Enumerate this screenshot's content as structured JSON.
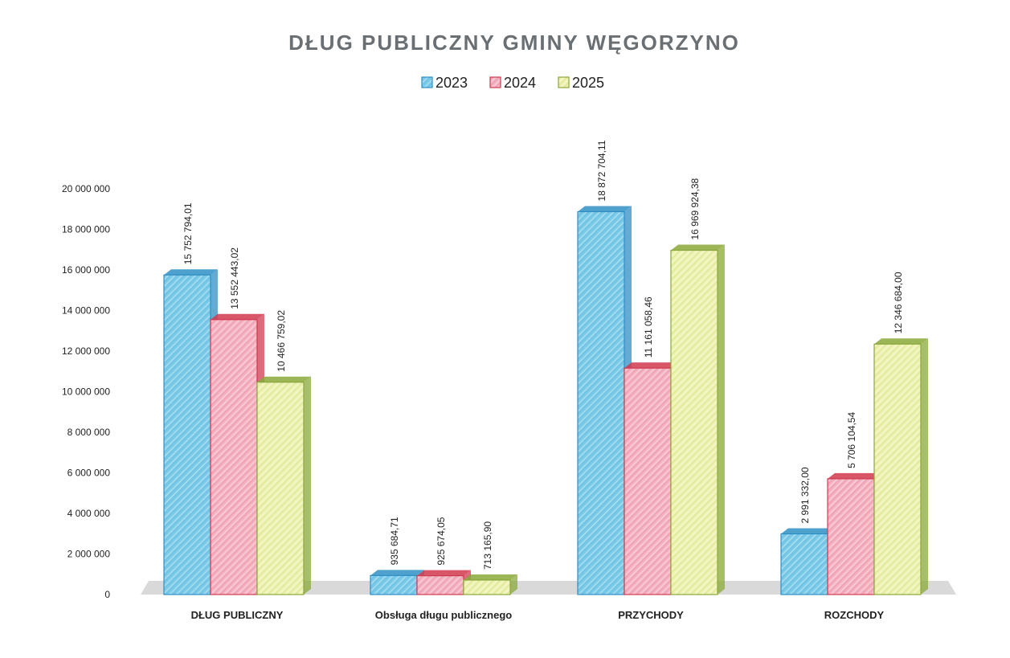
{
  "chart_data": {
    "type": "bar3d",
    "title": "DŁUG PUBLICZNY GMINY WĘGORZYNO",
    "categories": [
      "DŁUG PUBLICZNY",
      "Obsługa długu publicznego",
      "PRZYCHODY",
      "ROZCHODY"
    ],
    "series": [
      {
        "name": "2023",
        "color": "#7ccbe8",
        "edge_color": "#2f8fc4",
        "values": [
          15752794.01,
          935684.71,
          18872704.11,
          2991332.0
        ],
        "value_labels": [
          "15 752 794,01",
          "935 684,71",
          "18 872 704,11",
          "2 991 332,00"
        ]
      },
      {
        "name": "2024",
        "color": "#f4b3c2",
        "edge_color": "#d0394f",
        "values": [
          13552443.02,
          925674.05,
          11161058.46,
          5706104.54
        ],
        "value_labels": [
          "13 552 443,02",
          "925 674,05",
          "11 161 058,46",
          "5 706 104,54"
        ]
      },
      {
        "name": "2025",
        "color": "#eef2b0",
        "edge_color": "#8aa83a",
        "values": [
          10466759.02,
          713165.9,
          16969924.38,
          12346684.0
        ],
        "value_labels": [
          "10 466 759,02",
          "713 165,90",
          "16 969 924,38",
          "12 346 684,00"
        ]
      }
    ],
    "ylim": [
      0,
      20000000
    ],
    "yticks": [
      0,
      {
        "value": 2000000,
        "label": "2 000 000"
      },
      {
        "value": 4000000,
        "label": "4 000 000"
      },
      {
        "value": 6000000,
        "label": "6 000 000"
      },
      {
        "value": 8000000,
        "label": "8 000 000"
      },
      {
        "value": 10000000,
        "label": "10 000 000"
      },
      {
        "value": 12000000,
        "label": "12 000 000"
      },
      {
        "value": 14000000,
        "label": "14 000 000"
      },
      {
        "value": 16000000,
        "label": "16 000 000"
      },
      {
        "value": 18000000,
        "label": "18 000 000"
      },
      {
        "value": 20000000,
        "label": "20 000 000"
      }
    ],
    "legend": "top"
  }
}
